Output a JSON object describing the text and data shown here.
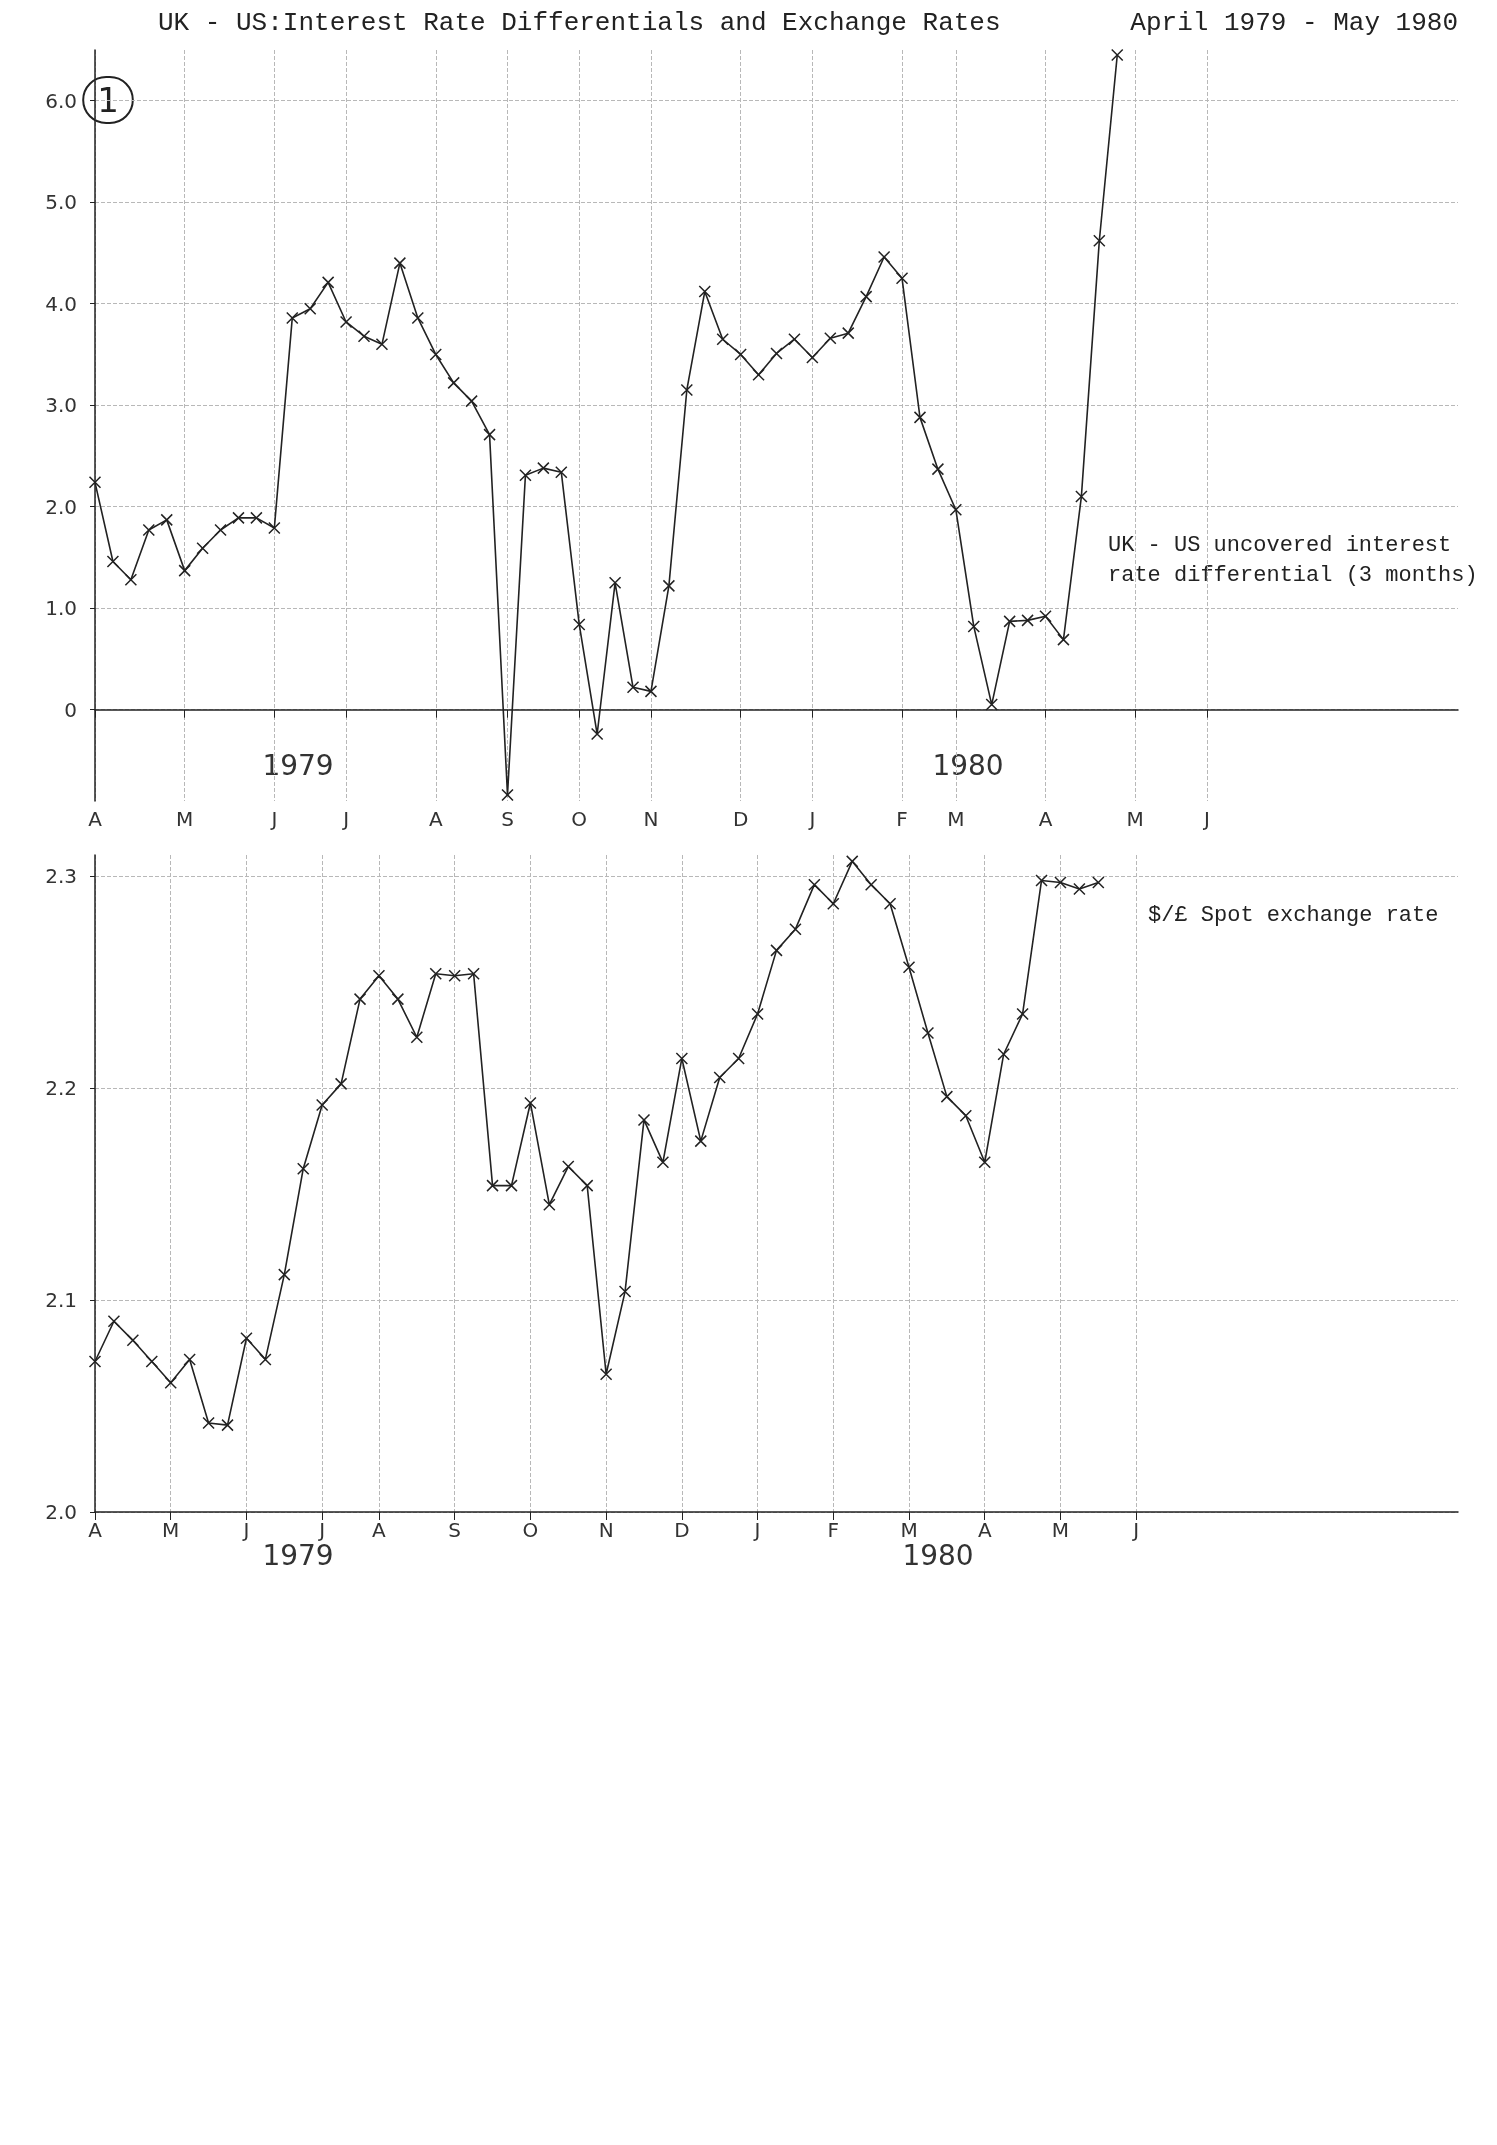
{
  "chart_data": [
    {
      "type": "line",
      "title": "UK - US:Interest Rate Differentials and Exchange Rates",
      "subtitle": "April 1979 - May 1980",
      "annotations": [
        "1",
        "1979",
        "1980"
      ],
      "categories": [
        "A",
        null,
        null,
        null,
        null,
        "M",
        null,
        null,
        null,
        null,
        "J",
        null,
        null,
        null,
        "J",
        null,
        null,
        null,
        null,
        "A",
        null,
        null,
        null,
        "S",
        null,
        null,
        null,
        "O",
        null,
        null,
        null,
        "N",
        null,
        null,
        null,
        null,
        "D",
        null,
        null,
        null,
        "J",
        null,
        null,
        null,
        null,
        "F",
        null,
        null,
        "M",
        null,
        null,
        null,
        null,
        "A",
        null,
        null,
        null,
        null,
        "M",
        null,
        null,
        null,
        "J",
        null,
        null,
        null,
        null,
        null,
        null,
        null,
        null,
        null,
        null,
        null,
        null,
        null,
        null
      ],
      "ylim": [
        -0.9,
        6.5
      ],
      "yticks": [
        {
          "value": 6,
          "label": "6.0"
        },
        {
          "value": 5,
          "label": "5.0"
        },
        {
          "value": 4,
          "label": "4.0"
        },
        {
          "value": 3,
          "label": "3.0"
        },
        {
          "value": 2,
          "label": "2.0"
        },
        {
          "value": 1,
          "label": "1.0"
        },
        0
      ],
      "grid": true,
      "marker": "cross",
      "line_style": "solid",
      "series": [
        {
          "name": "UK - US uncovered interest rate differential (3 months)",
          "color": "#222222",
          "values": [
            2.24,
            1.46,
            1.28,
            1.77,
            1.87,
            1.37,
            1.59,
            1.77,
            1.89,
            1.89,
            1.79,
            3.86,
            3.95,
            4.21,
            3.82,
            3.68,
            3.6,
            4.4,
            3.86,
            3.5,
            3.22,
            3.04,
            2.71,
            -0.84,
            2.31,
            2.38,
            2.34,
            0.84,
            -0.24,
            1.25,
            0.22,
            0.18,
            1.22,
            3.15,
            4.12,
            3.65,
            3.5,
            3.3,
            3.51,
            3.65,
            3.47,
            3.66,
            3.71,
            4.07,
            4.46,
            4.25,
            2.88,
            2.37,
            1.97,
            0.82,
            0.05,
            0.87,
            0.88,
            0.92,
            0.69,
            2.1,
            4.62,
            6.45,
            null,
            null,
            null,
            null,
            null,
            null,
            null,
            null,
            null,
            null,
            null,
            null,
            null,
            null,
            null,
            null,
            null,
            null,
            null
          ]
        }
      ]
    },
    {
      "type": "line",
      "annotations": [
        "1979",
        "1980"
      ],
      "categories": [
        "A",
        null,
        null,
        null,
        "M",
        null,
        null,
        null,
        "J",
        null,
        null,
        null,
        "J",
        null,
        null,
        "A",
        null,
        null,
        null,
        "S",
        null,
        null,
        null,
        "O",
        null,
        null,
        null,
        "N",
        null,
        null,
        null,
        "D",
        null,
        null,
        null,
        "J",
        null,
        null,
        null,
        "F",
        null,
        null,
        null,
        "M",
        null,
        null,
        null,
        "A",
        null,
        null,
        null,
        "M",
        null,
        null,
        null,
        "J",
        null,
        null,
        null,
        null,
        null,
        null,
        null,
        null,
        null,
        null,
        null,
        null,
        null,
        null,
        null,
        null,
        null
      ],
      "ylim": [
        2.0,
        2.31
      ],
      "yticks": [
        2.3,
        2.2,
        2.1,
        {
          "value": 2.0,
          "label": "2.0"
        }
      ],
      "grid": true,
      "marker": "cross",
      "line_style": "solid",
      "series": [
        {
          "name": "$/£ Spot exchange rate",
          "color": "#222222",
          "values": [
            2.071,
            2.09,
            2.081,
            2.071,
            2.061,
            2.072,
            2.042,
            2.041,
            2.082,
            2.072,
            2.112,
            2.162,
            2.192,
            2.202,
            2.242,
            2.253,
            2.242,
            2.224,
            2.254,
            2.253,
            2.254,
            2.154,
            2.154,
            2.193,
            2.145,
            2.163,
            2.154,
            2.065,
            2.104,
            2.185,
            2.165,
            2.214,
            2.175,
            2.205,
            2.214,
            2.235,
            2.265,
            2.275,
            2.296,
            2.287,
            2.307,
            2.296,
            2.287,
            2.257,
            2.226,
            2.196,
            2.187,
            2.165,
            2.216,
            2.235,
            2.298,
            2.297,
            2.294,
            2.297,
            null,
            null,
            null,
            null,
            null,
            null,
            null,
            null,
            null,
            null,
            null,
            null,
            null,
            null,
            null,
            null,
            null,
            null,
            null
          ]
        }
      ]
    }
  ]
}
